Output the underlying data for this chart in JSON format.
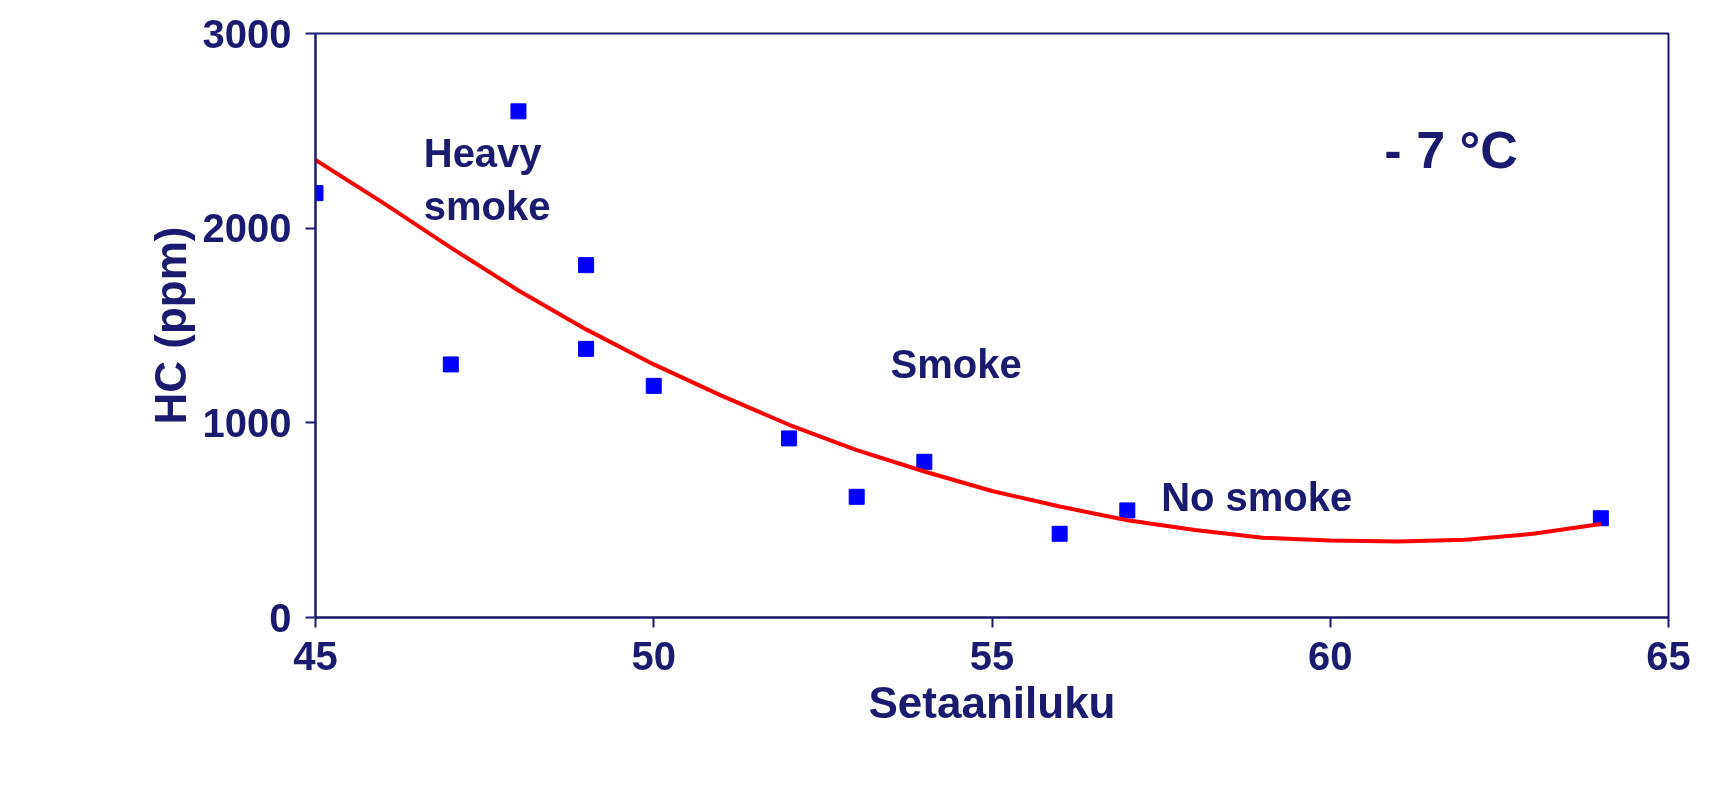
{
  "chart_data": {
    "type": "scatter",
    "xlabel": "Setaaniluku",
    "ylabel": "HC (ppm)",
    "xlim": [
      45,
      65
    ],
    "xticks": [
      45,
      50,
      55,
      60,
      65
    ],
    "ylim": [
      0,
      3000
    ],
    "yticks": [
      0,
      1000,
      2000,
      3000
    ],
    "grid": false,
    "marker": "square",
    "series": [
      {
        "color": "#0000ff",
        "x": [
          45,
          47,
          48,
          49,
          49,
          50,
          52,
          53,
          54,
          56,
          57,
          64
        ],
        "values": [
          2180,
          1300,
          2600,
          1810,
          1380,
          1190,
          920,
          620,
          800,
          430,
          550,
          510
        ]
      },
      {
        "type": "line",
        "color": "#ff0000",
        "marker": "none",
        "x": [
          45,
          46,
          47,
          48,
          49,
          50,
          51,
          52,
          53,
          54,
          55,
          56,
          57,
          58,
          59,
          60,
          61,
          62,
          63,
          64
        ],
        "values": [
          2350,
          2130,
          1900,
          1680,
          1480,
          1300,
          1140,
          990,
          860,
          750,
          650,
          570,
          500,
          450,
          410,
          395,
          390,
          400,
          430,
          480
        ]
      }
    ],
    "annotations": [
      "Heavy\nsmoke",
      "Smoke",
      "No smoke",
      "- 7 °C"
    ]
  }
}
